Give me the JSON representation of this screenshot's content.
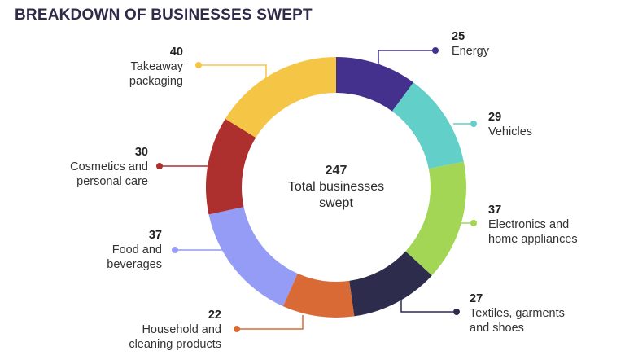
{
  "title": "BREAKDOWN OF BUSINESSES SWEPT",
  "chart_data": {
    "type": "pie",
    "variant": "donut",
    "title": "BREAKDOWN OF BUSINESSES SWEPT",
    "center": {
      "value": "247",
      "label": "Total businesses\nswept"
    },
    "slices": [
      {
        "label": "Energy",
        "value": 25,
        "color": "#44318d"
      },
      {
        "label": "Vehicles",
        "value": 29,
        "color": "#62cfc8"
      },
      {
        "label": "Electronics and\nhome appliances",
        "value": 37,
        "color": "#a3d655"
      },
      {
        "label": "Textiles, garments\nand shoes",
        "value": 27,
        "color": "#2e2c4d"
      },
      {
        "label": "Household and\ncleaning products",
        "value": 22,
        "color": "#d96a36"
      },
      {
        "label": "Food and\nbeverages",
        "value": 37,
        "color": "#949cf5"
      },
      {
        "label": "Cosmetics and\npersonal care",
        "value": 30,
        "color": "#ad2f2e"
      },
      {
        "label": "Takeaway\npackaging",
        "value": 40,
        "color": "#f5c545"
      }
    ]
  }
}
